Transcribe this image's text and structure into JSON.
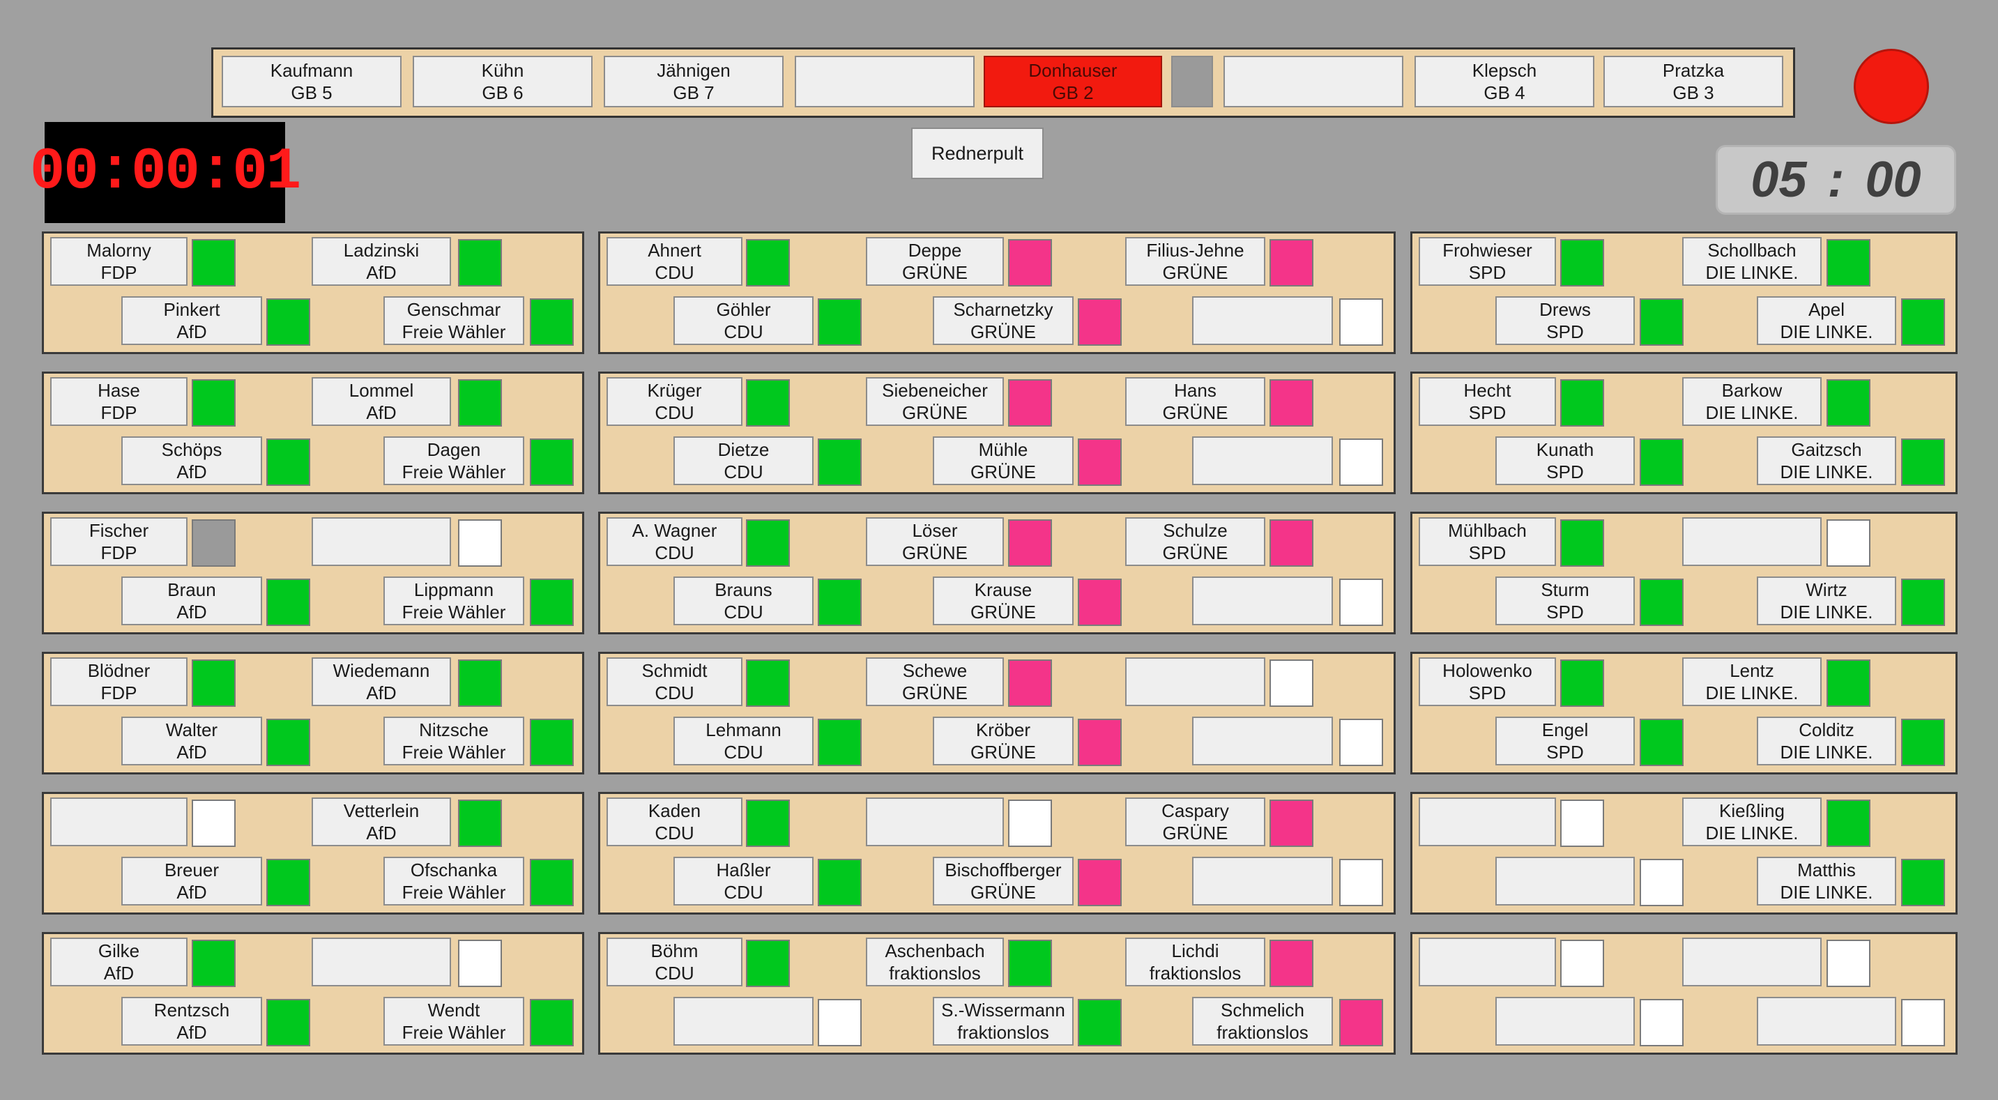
{
  "colors": {
    "green": "#00c81e",
    "pink": "#f43489",
    "gray": "#9a9a9a",
    "white": "#ffffff",
    "red": "#f21a0f"
  },
  "header": {
    "timer": "00:00:01",
    "countdown_minutes": "05",
    "countdown_sep": ":",
    "countdown_seconds": "00",
    "podium_label": "Rednerpult"
  },
  "gov_bar": [
    {
      "name": "Kaufmann",
      "sub": "GB 5"
    },
    {
      "name": "Kühn",
      "sub": "GB 6"
    },
    {
      "name": "Jähnigen",
      "sub": "GB 7"
    },
    {
      "name": "",
      "sub": ""
    },
    {
      "name": "Donhauser",
      "sub": "GB 2",
      "active": true
    },
    {
      "name": "",
      "sub": "",
      "small": true
    },
    {
      "name": "",
      "sub": ""
    },
    {
      "name": "Klepsch",
      "sub": "GB 4"
    },
    {
      "name": "Pratzka",
      "sub": "GB 3"
    }
  ],
  "rows": [
    [
      [
        {
          "name": "Malorny",
          "party": "FDP",
          "ind": "green"
        },
        {
          "name": "Ladzinski",
          "party": "AfD",
          "ind": "green"
        },
        {
          "name": "Pinkert",
          "party": "AfD",
          "ind": "green"
        },
        {
          "name": "Genschmar",
          "party": "Freie Wähler",
          "ind": "green"
        }
      ],
      [
        {
          "name": "Ahnert",
          "party": "CDU",
          "ind": "green"
        },
        {
          "name": "Deppe",
          "party": "GRÜNE",
          "ind": "pink"
        },
        {
          "name": "Filius-Jehne",
          "party": "GRÜNE",
          "ind": "pink"
        },
        {
          "name": "Göhler",
          "party": "CDU",
          "ind": "green"
        },
        {
          "name": "Scharnetzky",
          "party": "GRÜNE",
          "ind": "pink"
        },
        {
          "name": "",
          "party": "",
          "ind": "white"
        }
      ],
      [
        {
          "name": "Frohwieser",
          "party": "SPD",
          "ind": "green"
        },
        {
          "name": "Schollbach",
          "party": "DIE LINKE.",
          "ind": "green"
        },
        {
          "name": "Drews",
          "party": "SPD",
          "ind": "green"
        },
        {
          "name": "Apel",
          "party": "DIE LINKE.",
          "ind": "green"
        }
      ]
    ],
    [
      [
        {
          "name": "Hase",
          "party": "FDP",
          "ind": "green"
        },
        {
          "name": "Lommel",
          "party": "AfD",
          "ind": "green"
        },
        {
          "name": "Schöps",
          "party": "AfD",
          "ind": "green"
        },
        {
          "name": "Dagen",
          "party": "Freie Wähler",
          "ind": "green"
        }
      ],
      [
        {
          "name": "Krüger",
          "party": "CDU",
          "ind": "green"
        },
        {
          "name": "Siebeneicher",
          "party": "GRÜNE",
          "ind": "pink"
        },
        {
          "name": "Hans",
          "party": "GRÜNE",
          "ind": "pink"
        },
        {
          "name": "Dietze",
          "party": "CDU",
          "ind": "green"
        },
        {
          "name": "Mühle",
          "party": "GRÜNE",
          "ind": "pink"
        },
        {
          "name": "",
          "party": "",
          "ind": "white"
        }
      ],
      [
        {
          "name": "Hecht",
          "party": "SPD",
          "ind": "green"
        },
        {
          "name": "Barkow",
          "party": "DIE LINKE.",
          "ind": "green"
        },
        {
          "name": "Kunath",
          "party": "SPD",
          "ind": "green"
        },
        {
          "name": "Gaitzsch",
          "party": "DIE LINKE.",
          "ind": "green"
        }
      ]
    ],
    [
      [
        {
          "name": "Fischer",
          "party": "FDP",
          "ind": "gray"
        },
        {
          "name": "",
          "party": "",
          "ind": "white"
        },
        {
          "name": "Braun",
          "party": "AfD",
          "ind": "green"
        },
        {
          "name": "Lippmann",
          "party": "Freie Wähler",
          "ind": "green"
        }
      ],
      [
        {
          "name": "A. Wagner",
          "party": "CDU",
          "ind": "green"
        },
        {
          "name": "Löser",
          "party": "GRÜNE",
          "ind": "pink"
        },
        {
          "name": "Schulze",
          "party": "GRÜNE",
          "ind": "pink"
        },
        {
          "name": "Brauns",
          "party": "CDU",
          "ind": "green"
        },
        {
          "name": "Krause",
          "party": "GRÜNE",
          "ind": "pink"
        },
        {
          "name": "",
          "party": "",
          "ind": "white"
        }
      ],
      [
        {
          "name": "Mühlbach",
          "party": "SPD",
          "ind": "green"
        },
        {
          "name": "",
          "party": "",
          "ind": "white"
        },
        {
          "name": "Sturm",
          "party": "SPD",
          "ind": "green"
        },
        {
          "name": "Wirtz",
          "party": "DIE LINKE.",
          "ind": "green"
        }
      ]
    ],
    [
      [
        {
          "name": "Blödner",
          "party": "FDP",
          "ind": "green"
        },
        {
          "name": "Wiedemann",
          "party": "AfD",
          "ind": "green"
        },
        {
          "name": "Walter",
          "party": "AfD",
          "ind": "green"
        },
        {
          "name": "Nitzsche",
          "party": "Freie Wähler",
          "ind": "green"
        }
      ],
      [
        {
          "name": "Schmidt",
          "party": "CDU",
          "ind": "green"
        },
        {
          "name": "Schewe",
          "party": "GRÜNE",
          "ind": "pink"
        },
        {
          "name": "",
          "party": "",
          "ind": "white"
        },
        {
          "name": "Lehmann",
          "party": "CDU",
          "ind": "green"
        },
        {
          "name": "Kröber",
          "party": "GRÜNE",
          "ind": "pink"
        },
        {
          "name": "",
          "party": "",
          "ind": "white"
        }
      ],
      [
        {
          "name": "Holowenko",
          "party": "SPD",
          "ind": "green"
        },
        {
          "name": "Lentz",
          "party": "DIE LINKE.",
          "ind": "green"
        },
        {
          "name": "Engel",
          "party": "SPD",
          "ind": "green"
        },
        {
          "name": "Colditz",
          "party": "DIE LINKE.",
          "ind": "green"
        }
      ]
    ],
    [
      [
        {
          "name": "",
          "party": "",
          "ind": "white"
        },
        {
          "name": "Vetterlein",
          "party": "AfD",
          "ind": "green"
        },
        {
          "name": "Breuer",
          "party": "AfD",
          "ind": "green"
        },
        {
          "name": "Ofschanka",
          "party": "Freie Wähler",
          "ind": "green"
        }
      ],
      [
        {
          "name": "Kaden",
          "party": "CDU",
          "ind": "green"
        },
        {
          "name": "",
          "party": "",
          "ind": "white"
        },
        {
          "name": "Caspary",
          "party": "GRÜNE",
          "ind": "pink"
        },
        {
          "name": "Haßler",
          "party": "CDU",
          "ind": "green"
        },
        {
          "name": "Bischoffberger",
          "party": "GRÜNE",
          "ind": "pink"
        },
        {
          "name": "",
          "party": "",
          "ind": "white"
        }
      ],
      [
        {
          "name": "",
          "party": "",
          "ind": "white"
        },
        {
          "name": "Kießling",
          "party": "DIE LINKE.",
          "ind": "green"
        },
        {
          "name": "",
          "party": "",
          "ind": "white"
        },
        {
          "name": "Matthis",
          "party": "DIE LINKE.",
          "ind": "green"
        }
      ]
    ],
    [
      [
        {
          "name": "Gilke",
          "party": "AfD",
          "ind": "green"
        },
        {
          "name": "",
          "party": "",
          "ind": "white"
        },
        {
          "name": "Rentzsch",
          "party": "AfD",
          "ind": "green"
        },
        {
          "name": "Wendt",
          "party": "Freie Wähler",
          "ind": "green"
        }
      ],
      [
        {
          "name": "Böhm",
          "party": "CDU",
          "ind": "green"
        },
        {
          "name": "Aschenbach",
          "party": "fraktionslos",
          "ind": "green"
        },
        {
          "name": "Lichdi",
          "party": "fraktionslos",
          "ind": "pink"
        },
        {
          "name": "",
          "party": "",
          "ind": "white"
        },
        {
          "name": "S.-Wissermann",
          "party": "fraktionslos",
          "ind": "green"
        },
        {
          "name": "Schmelich",
          "party": "fraktionslos",
          "ind": "pink"
        }
      ],
      [
        {
          "name": "",
          "party": "",
          "ind": "white"
        },
        {
          "name": "",
          "party": "",
          "ind": "white"
        },
        {
          "name": "",
          "party": "",
          "ind": "white"
        },
        {
          "name": "",
          "party": "",
          "ind": "white"
        }
      ]
    ]
  ]
}
